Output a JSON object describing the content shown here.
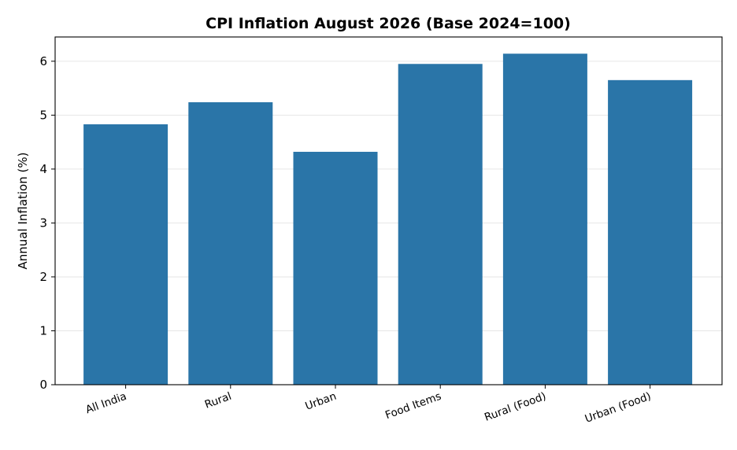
{
  "chart_data": {
    "type": "bar",
    "title": "CPI Inflation August 2026 (Base 2024=100)",
    "xlabel": "",
    "ylabel": "Annual Inflation (%)",
    "categories": [
      "All India",
      "Rural",
      "Urban",
      "Food Items",
      "Rural (Food)",
      "Urban (Food)"
    ],
    "values": [
      4.83,
      5.24,
      4.32,
      5.95,
      6.14,
      5.65
    ],
    "ylim": [
      0,
      6.45
    ],
    "yticks": [
      0,
      1,
      2,
      3,
      4,
      5,
      6
    ],
    "grid": "horizontal",
    "bar_color": "#2a75a8"
  }
}
